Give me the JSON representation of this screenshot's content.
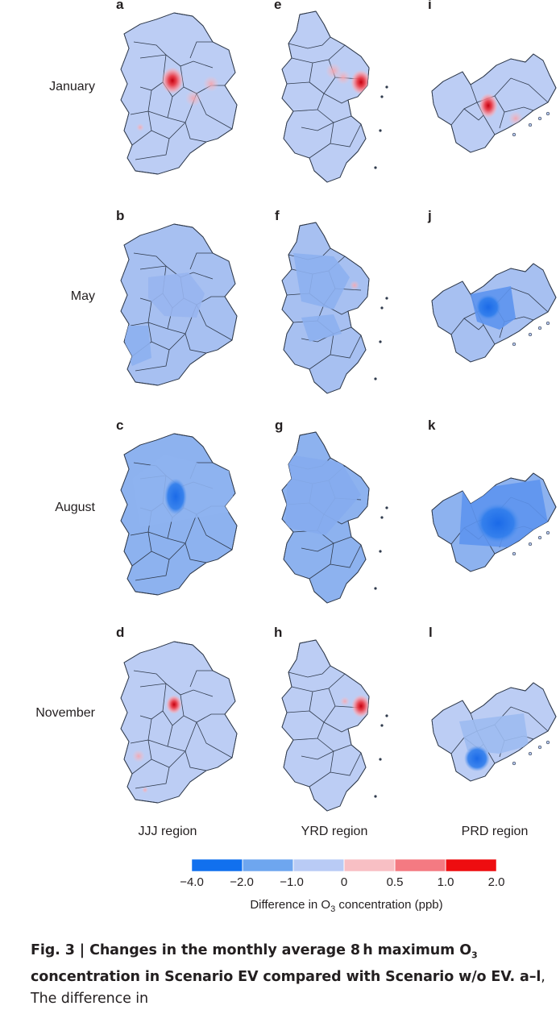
{
  "rows": [
    "January",
    "May",
    "August",
    "November"
  ],
  "columns": [
    "JJJ region",
    "YRD region",
    "PRD region"
  ],
  "panels": [
    [
      "a",
      "e",
      "i"
    ],
    [
      "b",
      "f",
      "j"
    ],
    [
      "c",
      "g",
      "k"
    ],
    [
      "d",
      "h",
      "l"
    ]
  ],
  "legend": {
    "title_pre": "Difference in O",
    "title_sub": "3",
    "title_post": " concentration (ppb)",
    "ticks": [
      "−4.0",
      "−2.0",
      "−1.0",
      "0",
      "0.5",
      "1.0",
      "2.0"
    ],
    "colors": [
      "#1170ee",
      "#6ea6ef",
      "#b9cbf5",
      "#f8bfc4",
      "#f47a82",
      "#ee0d10"
    ]
  },
  "caption": {
    "fig_label": "Fig. 3 | Changes in the monthly average 8 h maximum O",
    "fig_sub": "3",
    "fig_rest": " concentration in Scenario EV compared with Scenario w/o EV.",
    "range": "a–l",
    "trail": ", The difference in"
  },
  "map_fill": {
    "base": "#bccdf4",
    "may": "#a7c0f1",
    "aug": "#8db2ef",
    "deep": "#2a78ea",
    "red": "#e3202a",
    "pink": "#f6b7c0"
  }
}
